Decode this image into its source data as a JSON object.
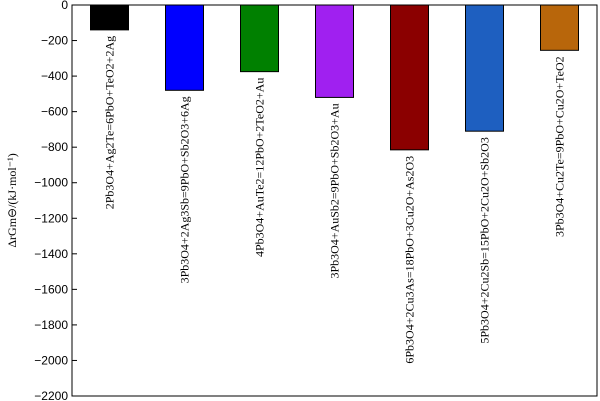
{
  "chart_data": {
    "type": "bar",
    "title": "",
    "ylabel": "ΔrGm⊖/(kJ·mol⁻¹)",
    "ylim": [
      -2200,
      0
    ],
    "ytick_step": 200,
    "yticks": [
      "0",
      "−200",
      "−400",
      "−600",
      "−800",
      "−1000",
      "−1200",
      "−1400",
      "−1600",
      "−1800",
      "−2000",
      "−2200"
    ],
    "grid": false,
    "categories": [
      "2Pb3O4+Ag2Te=6PbO+TeO2+2Ag",
      "3Pb3O4+2Ag3Sb=9PbO+Sb2O3+6Ag",
      "4Pb3O4+AuTe2=12PbO+2TeO2+Au",
      "3Pb3O4+AuSb2=9PbO+Sb2O3+Au",
      "6Pb3O4+2Cu3As=18PbO+3Cu2O+As2O3",
      "5Pb3O4+2Cu2Sb=15PbO+2Cu2O+Sb2O3",
      "3Pb3O4+Cu2Te=9PbO+Cu2O+TeO2"
    ],
    "values": [
      -140,
      -480,
      -375,
      -520,
      -815,
      -710,
      -255
    ],
    "colors": [
      "#000000",
      "#0000ff",
      "#008000",
      "#a020f0",
      "#8b0000",
      "#1e5fc0",
      "#b8660b"
    ]
  }
}
